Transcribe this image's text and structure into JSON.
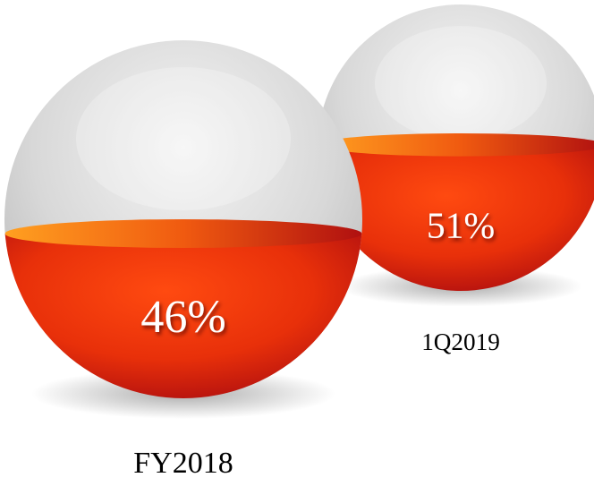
{
  "chart_data": {
    "type": "sphere-fill",
    "categories": [
      "FY2018",
      "1Q2019"
    ],
    "values": [
      46,
      51
    ],
    "value_labels": [
      "46%",
      "51%"
    ],
    "ylim": [
      0,
      100
    ]
  }
}
